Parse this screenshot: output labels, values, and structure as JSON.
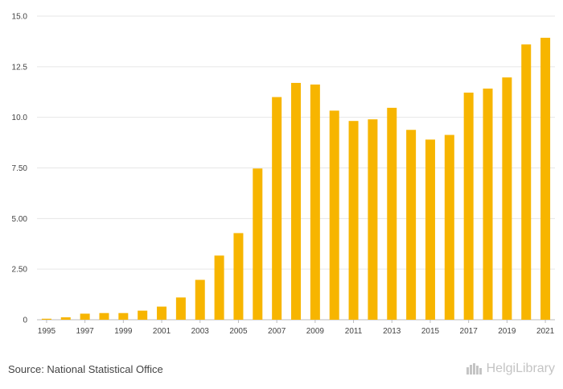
{
  "chart_data": {
    "type": "bar",
    "title": "",
    "xlabel": "",
    "ylabel": "",
    "ylim": [
      0,
      15
    ],
    "yticks": [
      "0",
      "2.50",
      "5.00",
      "7.50",
      "10.0",
      "12.5",
      "15.0"
    ],
    "ytick_values": [
      0,
      2.5,
      5,
      7.5,
      10,
      12.5,
      15
    ],
    "xtick_labels": [
      "1995",
      "1997",
      "1999",
      "2001",
      "2003",
      "2005",
      "2007",
      "2009",
      "2011",
      "2013",
      "2015",
      "2017",
      "2019",
      "2021"
    ],
    "categories": [
      "1995",
      "1996",
      "1997",
      "1998",
      "1999",
      "2000",
      "2001",
      "2002",
      "2003",
      "2004",
      "2005",
      "2006",
      "2007",
      "2008",
      "2009",
      "2010",
      "2011",
      "2012",
      "2013",
      "2014",
      "2015",
      "2016",
      "2017",
      "2018",
      "2019",
      "2020",
      "2021"
    ],
    "values": [
      0.05,
      0.12,
      0.3,
      0.33,
      0.33,
      0.45,
      0.65,
      1.1,
      1.97,
      3.17,
      4.28,
      7.47,
      11.0,
      11.7,
      11.62,
      10.33,
      9.82,
      9.9,
      10.47,
      9.38,
      8.9,
      9.13,
      11.22,
      11.42,
      11.97,
      13.6,
      13.93
    ],
    "bar_color": "#f7b500",
    "grid": true
  },
  "footer": {
    "source": "Source: National Statistical Office",
    "brand": "HelgiLibrary"
  }
}
